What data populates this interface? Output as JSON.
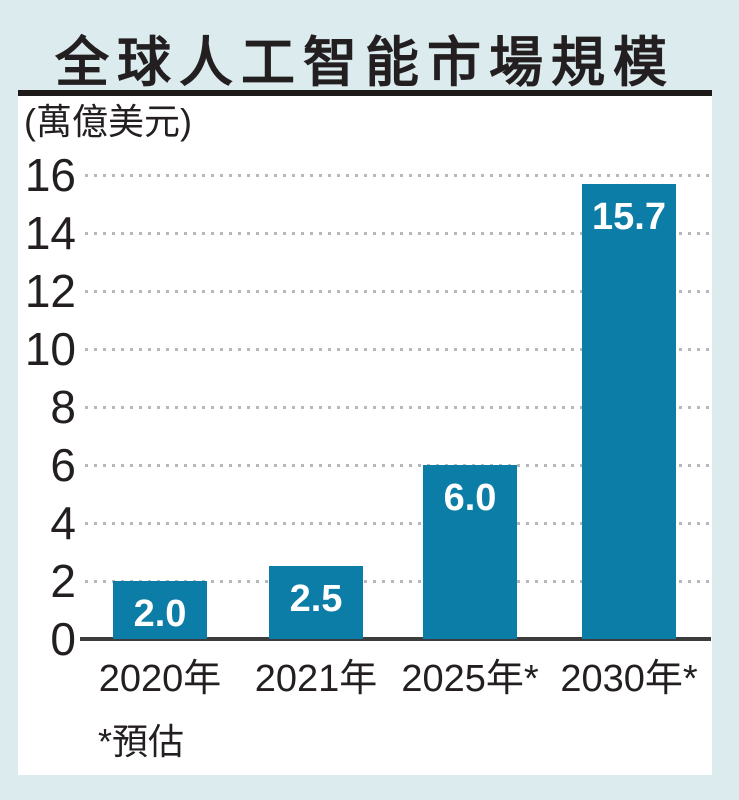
{
  "title": "全球人工智能市場規模",
  "unit_label": "(萬億美元)",
  "footnote": "*預估",
  "colors": {
    "background": "#dcebee",
    "card": "#ffffff",
    "bar": "#0b7da6",
    "text": "#231f20",
    "gridline": "#b4b9bb",
    "axis_line": "#3c3c3c",
    "value_label": "#ffffff"
  },
  "chart_data": {
    "type": "bar",
    "title": "全球人工智能市場規模",
    "ylabel": "(萬億美元)",
    "categories": [
      "2020年",
      "2021年",
      "2025年*",
      "2030年*"
    ],
    "values": [
      2.0,
      2.5,
      6.0,
      15.7
    ],
    "value_labels": [
      "2.0",
      "2.5",
      "6.0",
      "15.7"
    ],
    "ylim": [
      0,
      16
    ],
    "yticks": [
      0,
      2,
      4,
      6,
      8,
      10,
      12,
      14,
      16
    ],
    "grid": "horizontal-dotted",
    "legend": "none",
    "annotation": "*預估"
  }
}
